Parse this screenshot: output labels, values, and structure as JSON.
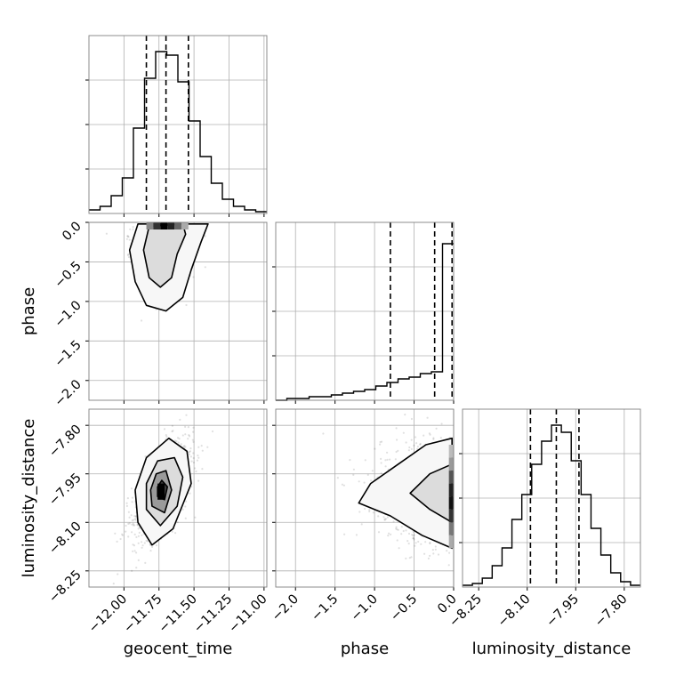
{
  "chart_data": [
    {
      "panel": "geocent_time-hist",
      "type": "histogram",
      "xlim": [
        -12.25,
        -10.98
      ],
      "grid": true,
      "quantile_lines": [
        -11.84,
        -11.7,
        -11.54
      ],
      "bins": [
        {
          "x": -12.25,
          "h": 0.02
        },
        {
          "x": -12.17,
          "h": 0.04
        },
        {
          "x": -12.09,
          "h": 0.1
        },
        {
          "x": -12.01,
          "h": 0.2
        },
        {
          "x": -11.93,
          "h": 0.48
        },
        {
          "x": -11.85,
          "h": 0.76
        },
        {
          "x": -11.77,
          "h": 0.91
        },
        {
          "x": -11.69,
          "h": 0.89
        },
        {
          "x": -11.61,
          "h": 0.74
        },
        {
          "x": -11.53,
          "h": 0.52
        },
        {
          "x": -11.45,
          "h": 0.32
        },
        {
          "x": -11.37,
          "h": 0.17
        },
        {
          "x": -11.29,
          "h": 0.08
        },
        {
          "x": -11.21,
          "h": 0.04
        },
        {
          "x": -11.13,
          "h": 0.02
        },
        {
          "x": -11.05,
          "h": 0.01
        }
      ]
    },
    {
      "panel": "phase-vs-geocent_time",
      "type": "scatter-contour",
      "xlim": [
        -12.25,
        -10.98
      ],
      "ylim": [
        -2.25,
        0.0
      ],
      "grid": true,
      "yticks": [
        0.0,
        -0.5,
        -1.0,
        -1.5,
        -2.0
      ],
      "ytick_labels": [
        "0.0",
        "−0.5",
        "−1.0",
        "−1.5",
        "−2.0"
      ],
      "ylabel": "phase",
      "scatter_center": [
        -11.72,
        -0.55
      ],
      "contour_levels": [
        [
          [
            -11.9,
            -0.02
          ],
          [
            -11.96,
            -0.35
          ],
          [
            -11.92,
            -0.75
          ],
          [
            -11.84,
            -1.05
          ],
          [
            -11.7,
            -1.12
          ],
          [
            -11.58,
            -0.95
          ],
          [
            -11.52,
            -0.6
          ],
          [
            -11.45,
            -0.25
          ],
          [
            -11.4,
            -0.02
          ]
        ],
        [
          [
            -11.82,
            -0.05
          ],
          [
            -11.86,
            -0.35
          ],
          [
            -11.82,
            -0.7
          ],
          [
            -11.74,
            -0.82
          ],
          [
            -11.66,
            -0.7
          ],
          [
            -11.62,
            -0.4
          ],
          [
            -11.56,
            -0.15
          ],
          [
            -11.58,
            -0.02
          ]
        ]
      ]
    },
    {
      "panel": "phase-hist",
      "type": "histogram",
      "xlim": [
        -2.25,
        0.0
      ],
      "grid": true,
      "quantile_lines": [
        -0.8,
        -0.24,
        -0.02
      ],
      "bins": [
        {
          "x": -2.25,
          "h": 0.0
        },
        {
          "x": -2.1,
          "h": 0.01
        },
        {
          "x": -1.95,
          "h": 0.01
        },
        {
          "x": -1.8,
          "h": 0.02
        },
        {
          "x": -1.65,
          "h": 0.02
        },
        {
          "x": -1.5,
          "h": 0.03
        },
        {
          "x": -1.35,
          "h": 0.04
        },
        {
          "x": -1.2,
          "h": 0.05
        },
        {
          "x": -1.05,
          "h": 0.06
        },
        {
          "x": -0.9,
          "h": 0.08
        },
        {
          "x": -0.75,
          "h": 0.1
        },
        {
          "x": -0.6,
          "h": 0.12
        },
        {
          "x": -0.45,
          "h": 0.13
        },
        {
          "x": -0.3,
          "h": 0.15
        },
        {
          "x": -0.15,
          "h": 0.16
        },
        {
          "x": -0.05,
          "h": 0.88
        }
      ]
    },
    {
      "panel": "luminosity_distance-vs-geocent_time",
      "type": "scatter-contour",
      "xlim": [
        -12.25,
        -10.98
      ],
      "ylim": [
        -8.3,
        -7.75
      ],
      "grid": true,
      "xticks": [
        -12.0,
        -11.75,
        -11.5,
        -11.25,
        -11.0
      ],
      "xtick_labels": [
        "−12.00",
        "−11.75",
        "−11.50",
        "−11.25",
        "−11.00"
      ],
      "xlabel": "geocent_time",
      "yticks": [
        -7.8,
        -7.95,
        -8.1,
        -8.25
      ],
      "ytick_labels": [
        "−7.80",
        "−7.95",
        "−8.10",
        "−8.25"
      ],
      "ylabel": "luminosity_distance",
      "scatter_center": [
        -11.72,
        -8.0
      ],
      "contour_levels": [
        [
          [
            -11.9,
            -8.1
          ],
          [
            -11.8,
            -8.17
          ],
          [
            -11.65,
            -8.12
          ],
          [
            -11.52,
            -7.98
          ],
          [
            -11.55,
            -7.88
          ],
          [
            -11.68,
            -7.84
          ],
          [
            -11.84,
            -7.9
          ],
          [
            -11.92,
            -8.0
          ]
        ],
        [
          [
            -11.84,
            -8.06
          ],
          [
            -11.74,
            -8.11
          ],
          [
            -11.62,
            -8.05
          ],
          [
            -11.58,
            -7.96
          ],
          [
            -11.64,
            -7.9
          ],
          [
            -11.76,
            -7.91
          ],
          [
            -11.84,
            -7.98
          ]
        ],
        [
          [
            -11.8,
            -8.05
          ],
          [
            -11.71,
            -8.07
          ],
          [
            -11.66,
            -8.0
          ],
          [
            -11.7,
            -7.94
          ],
          [
            -11.77,
            -7.95
          ],
          [
            -11.81,
            -8.0
          ]
        ],
        [
          [
            -11.76,
            -8.02
          ],
          [
            -11.71,
            -8.03
          ],
          [
            -11.69,
            -7.99
          ],
          [
            -11.73,
            -7.97
          ],
          [
            -11.76,
            -7.99
          ]
        ]
      ]
    },
    {
      "panel": "luminosity_distance-vs-phase",
      "type": "scatter-contour",
      "xlim": [
        -2.25,
        0.0
      ],
      "ylim": [
        -8.3,
        -7.75
      ],
      "grid": true,
      "xticks": [
        -2.0,
        -1.5,
        -1.0,
        -0.5,
        0.0
      ],
      "xtick_labels": [
        "−2.0",
        "−1.5",
        "−1.0",
        "−0.5",
        "0.0"
      ],
      "xlabel": "phase",
      "scatter_center": [
        -0.55,
        -8.0
      ],
      "contour_levels": [
        [
          [
            -0.02,
            -8.18
          ],
          [
            -0.4,
            -8.14
          ],
          [
            -0.8,
            -8.08
          ],
          [
            -1.2,
            -8.04
          ],
          [
            -1.05,
            -7.98
          ],
          [
            -0.7,
            -7.92
          ],
          [
            -0.35,
            -7.86
          ],
          [
            -0.02,
            -7.84
          ]
        ],
        [
          [
            -0.02,
            -8.1
          ],
          [
            -0.3,
            -8.06
          ],
          [
            -0.55,
            -8.01
          ],
          [
            -0.3,
            -7.95
          ],
          [
            -0.02,
            -7.92
          ]
        ]
      ]
    },
    {
      "panel": "luminosity_distance-hist",
      "type": "histogram",
      "xlim": [
        -8.3,
        -7.75
      ],
      "grid": true,
      "xticks": [
        -8.25,
        -8.1,
        -7.95,
        -7.8
      ],
      "xtick_labels": [
        "−8.25",
        "−8.10",
        "−7.95",
        "−7.80"
      ],
      "xlabel": "luminosity_distance",
      "quantile_lines": [
        -8.09,
        -8.01,
        -7.94
      ],
      "bins": [
        {
          "x": -8.3,
          "h": 0.01
        },
        {
          "x": -8.27,
          "h": 0.02
        },
        {
          "x": -8.24,
          "h": 0.05
        },
        {
          "x": -8.21,
          "h": 0.12
        },
        {
          "x": -8.18,
          "h": 0.22
        },
        {
          "x": -8.15,
          "h": 0.38
        },
        {
          "x": -8.12,
          "h": 0.52
        },
        {
          "x": -8.09,
          "h": 0.69
        },
        {
          "x": -8.06,
          "h": 0.82
        },
        {
          "x": -8.03,
          "h": 0.91
        },
        {
          "x": -8.0,
          "h": 0.87
        },
        {
          "x": -7.97,
          "h": 0.71
        },
        {
          "x": -7.94,
          "h": 0.52
        },
        {
          "x": -7.91,
          "h": 0.33
        },
        {
          "x": -7.88,
          "h": 0.18
        },
        {
          "x": -7.85,
          "h": 0.08
        },
        {
          "x": -7.82,
          "h": 0.03
        },
        {
          "x": -7.79,
          "h": 0.01
        }
      ]
    }
  ]
}
